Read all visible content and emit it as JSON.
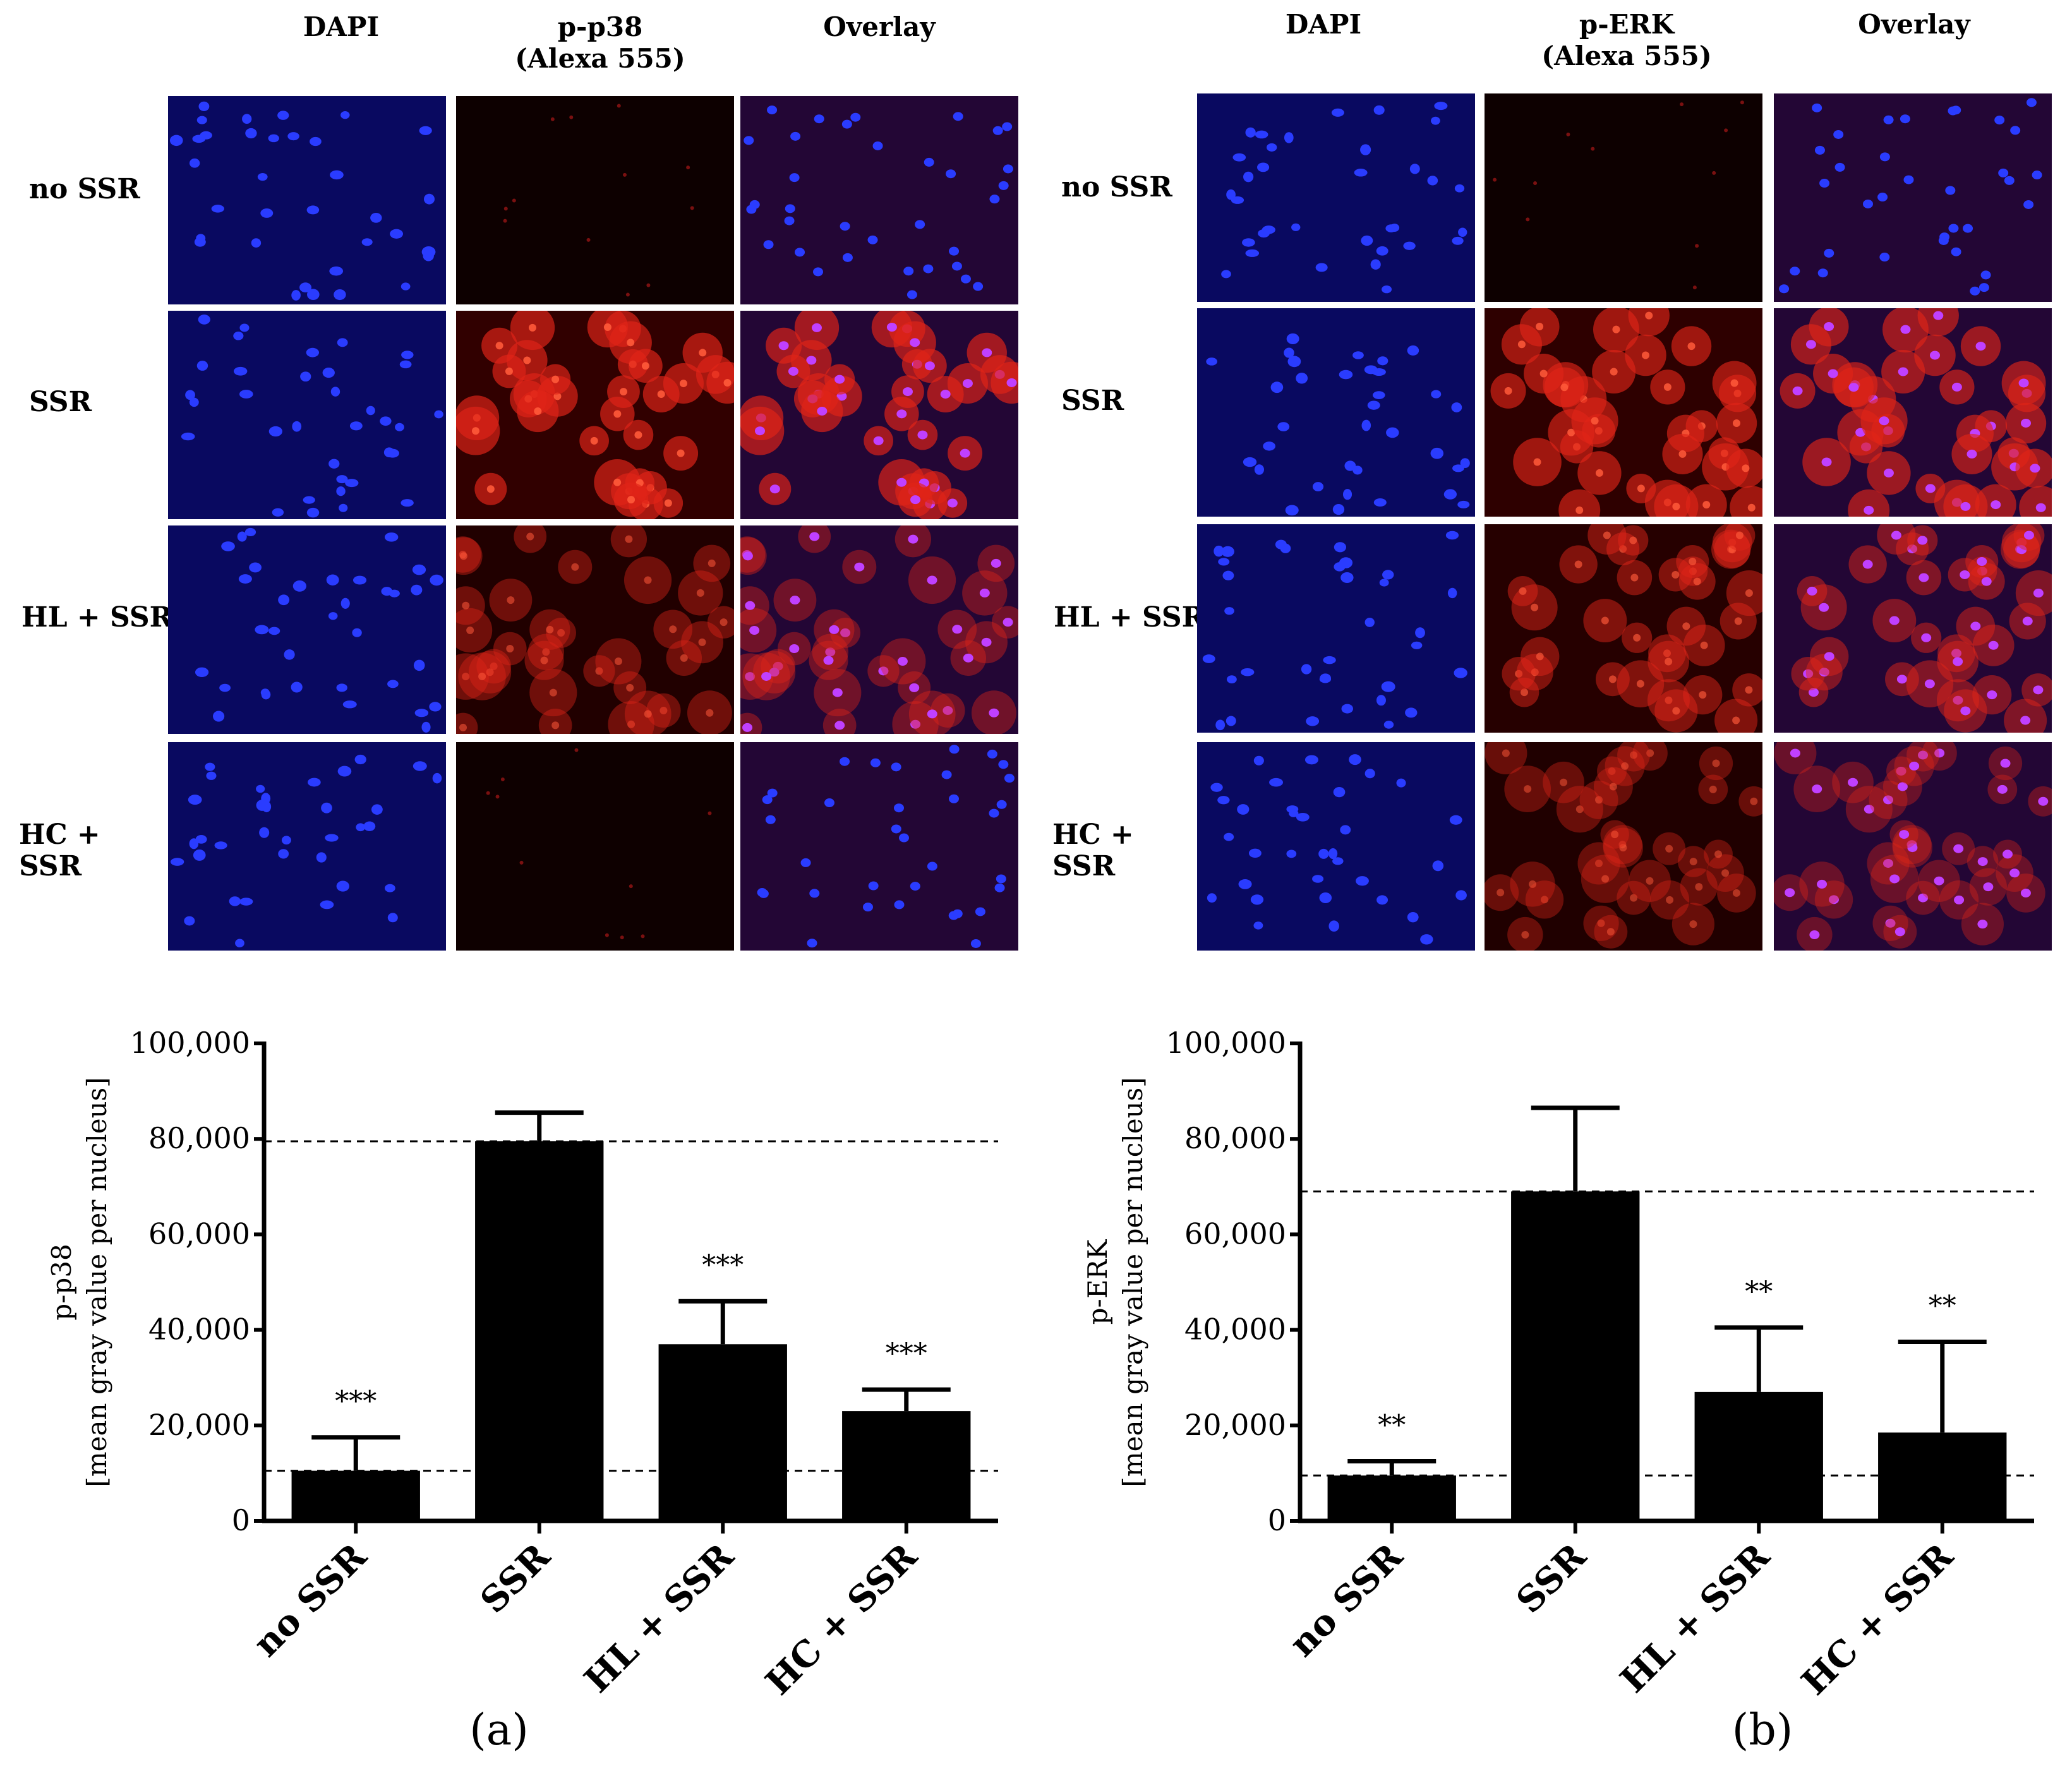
{
  "colors": {
    "dapi": "#0a0a6e",
    "stain": "#3a0000",
    "overlay": "#2a0638",
    "nucleus": "#2a3cff",
    "cell": "#e02418",
    "bar": "#000000"
  },
  "panels": [
    {
      "id": "a",
      "tag": "(a)",
      "columns": [
        "DAPI",
        "p-p38\n(Alexa 555)",
        "Overlay"
      ],
      "rows": [
        "no SSR",
        "SSR",
        "HL + SSR",
        "HC + SSR"
      ],
      "stain_intensity": [
        0.05,
        0.9,
        0.55,
        0.1
      ],
      "chart_data": {
        "type": "bar",
        "ylabel": "p-p38",
        "ylabel2": "[mean gray value per  nucleus]",
        "ylim": [
          0,
          100000
        ],
        "yticks": [
          "0",
          "20,000",
          "40,000",
          "60,000",
          "80,000",
          "100,000"
        ],
        "categories": [
          "no SSR",
          "SSR",
          "HL + SSR",
          "HC + SSR"
        ],
        "values": [
          10500,
          79500,
          37000,
          23000
        ],
        "errors": [
          7000,
          6000,
          9000,
          4500
        ],
        "significance": [
          "***",
          "",
          "***",
          "***"
        ],
        "reference_lines": [
          79500,
          10500
        ]
      }
    },
    {
      "id": "b",
      "tag": "(b)",
      "columns": [
        "DAPI",
        "p-ERK\n(Alexa 555)",
        "Overlay"
      ],
      "rows": [
        "no SSR",
        "SSR",
        "HL + SSR",
        "HC + SSR"
      ],
      "stain_intensity": [
        0.05,
        0.85,
        0.65,
        0.5
      ],
      "chart_data": {
        "type": "bar",
        "ylabel": "p-ERK",
        "ylabel2": "[mean gray value per  nucleus]",
        "ylim": [
          0,
          100000
        ],
        "yticks": [
          "0",
          "20,000",
          "40,000",
          "60,000",
          "80,000",
          "100,000"
        ],
        "categories": [
          "no SSR",
          "SSR",
          "HL + SSR",
          "HC + SSR"
        ],
        "values": [
          9500,
          69000,
          27000,
          18500
        ],
        "errors": [
          3000,
          17500,
          13500,
          19000
        ],
        "significance": [
          "**",
          "",
          "**",
          "**"
        ],
        "reference_lines": [
          69000,
          9500
        ]
      }
    }
  ]
}
